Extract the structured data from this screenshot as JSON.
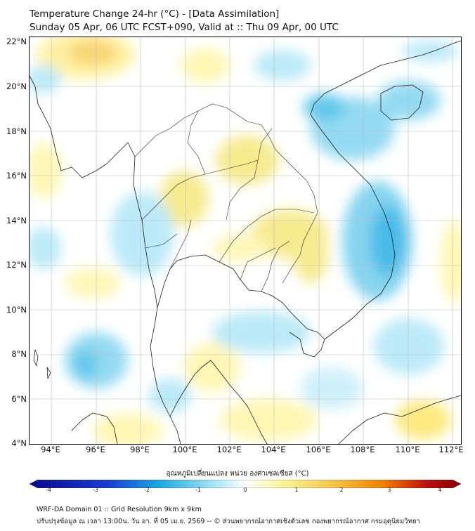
{
  "header": {
    "title": "Temperature Change 24-hr (°C) - [Data Assimilation]",
    "subtitle": "Sunday 05 Apr, 06 UTC FCST+090, Valid at :: Thu 09 Apr, 00 UTC"
  },
  "map": {
    "lat_ticks": [
      "22°N",
      "20°N",
      "18°N",
      "16°N",
      "14°N",
      "12°N",
      "10°N",
      "8°N",
      "6°N",
      "4°N"
    ],
    "lon_ticks": [
      "94°E",
      "96°E",
      "98°E",
      "100°E",
      "102°E",
      "104°E",
      "106°E",
      "108°E",
      "110°E",
      "112°E"
    ],
    "lat_range": [
      4,
      22
    ],
    "lon_range": [
      93,
      112.5
    ]
  },
  "colorbar": {
    "label": "อุณหภูมิเปลี่ยนแปลง หน่วย องศาเซลเซียส (°C)",
    "ticks": [
      "-4",
      "-3",
      "-2",
      "-1",
      "0",
      "1",
      "2",
      "3",
      "4"
    ],
    "colors": {
      "min": "#0a0a8a",
      "cold": "#1aa8e0",
      "cool": "#9fe2f5",
      "neutral": "#ffffff",
      "warm": "#fff6a0",
      "hot": "#f0a000",
      "max": "#800000"
    }
  },
  "footer": {
    "line1": "WRF-DA Domain 01 :: Grid Resolution 9km x 9km",
    "line2": "ปรับปรุงข้อมูล ณ เวลา 13:00น. วัน อา. ที่ 05 เม.ย. 2569 -- © ส่วนพยากรณ์อากาศเชิงตัวเลข กองพยากรณ์อากาศ กรมอุตุนิยมวิทยา"
  }
}
